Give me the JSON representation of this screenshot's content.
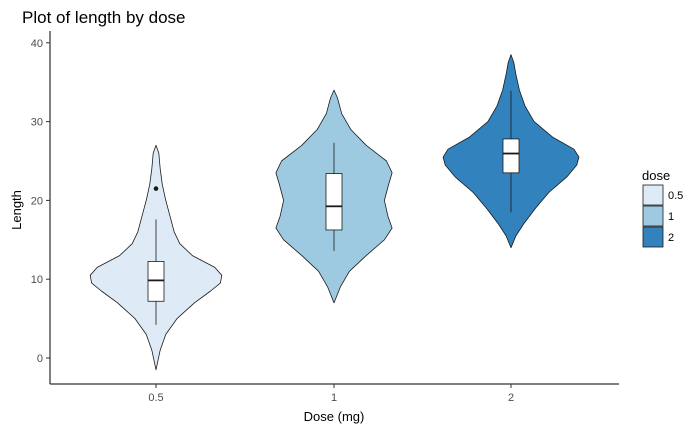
{
  "chart_data": {
    "type": "violin",
    "title": "Plot of length  by dose",
    "xlabel": "Dose (mg)",
    "ylabel": "Length",
    "categories": [
      "0.5",
      "1",
      "2"
    ],
    "ylim": [
      -3.3,
      41.5
    ],
    "yticks": [
      0,
      10,
      20,
      30,
      40
    ],
    "grid": false,
    "legend": {
      "title": "dose",
      "position": "right",
      "entries": [
        "0.5",
        "1",
        "2"
      ]
    },
    "colors": [
      "#deebf7",
      "#9ecae1",
      "#3182bd"
    ],
    "series": [
      {
        "category": "0.5",
        "violin_min": -1.5,
        "violin_max": 27,
        "violin_profile": [
          [
            -1.5,
            0
          ],
          [
            1,
            0.06
          ],
          [
            3,
            0.14
          ],
          [
            5,
            0.3
          ],
          [
            7,
            0.55
          ],
          [
            8.5,
            0.78
          ],
          [
            9.5,
            0.92
          ],
          [
            10.5,
            0.94
          ],
          [
            11.5,
            0.84
          ],
          [
            13,
            0.52
          ],
          [
            14.5,
            0.34
          ],
          [
            16,
            0.26
          ],
          [
            18,
            0.2
          ],
          [
            20,
            0.14
          ],
          [
            22,
            0.09
          ],
          [
            24,
            0.06
          ],
          [
            26,
            0.04
          ],
          [
            27,
            0
          ]
        ],
        "box": {
          "min": 4.2,
          "q1": 7.2,
          "median": 9.85,
          "q3": 12.25,
          "max": 17.6
        },
        "outliers": [
          21.5
        ]
      },
      {
        "category": "1",
        "violin_min": 7,
        "violin_max": 34,
        "violin_profile": [
          [
            7,
            0
          ],
          [
            9,
            0.09
          ],
          [
            11,
            0.22
          ],
          [
            13,
            0.46
          ],
          [
            15,
            0.72
          ],
          [
            16.5,
            0.83
          ],
          [
            18,
            0.77
          ],
          [
            20,
            0.72
          ],
          [
            22,
            0.78
          ],
          [
            23.5,
            0.83
          ],
          [
            25,
            0.75
          ],
          [
            27,
            0.46
          ],
          [
            29,
            0.24
          ],
          [
            31,
            0.11
          ],
          [
            33,
            0.05
          ],
          [
            34,
            0
          ]
        ],
        "box": {
          "min": 13.6,
          "q1": 16.25,
          "median": 19.25,
          "q3": 23.4,
          "max": 27.3
        },
        "outliers": []
      },
      {
        "category": "2",
        "violin_min": 14,
        "violin_max": 38.5,
        "violin_profile": [
          [
            14,
            0
          ],
          [
            15.5,
            0.07
          ],
          [
            17,
            0.18
          ],
          [
            19,
            0.35
          ],
          [
            21,
            0.54
          ],
          [
            23,
            0.8
          ],
          [
            24.5,
            0.94
          ],
          [
            25.5,
            0.97
          ],
          [
            26.5,
            0.9
          ],
          [
            28,
            0.6
          ],
          [
            30,
            0.33
          ],
          [
            32,
            0.2
          ],
          [
            34,
            0.12
          ],
          [
            36,
            0.07
          ],
          [
            37.5,
            0.04
          ],
          [
            38.5,
            0
          ]
        ],
        "box": {
          "min": 18.5,
          "q1": 23.5,
          "median": 25.95,
          "q3": 27.8,
          "max": 33.9
        },
        "outliers": []
      }
    ]
  }
}
